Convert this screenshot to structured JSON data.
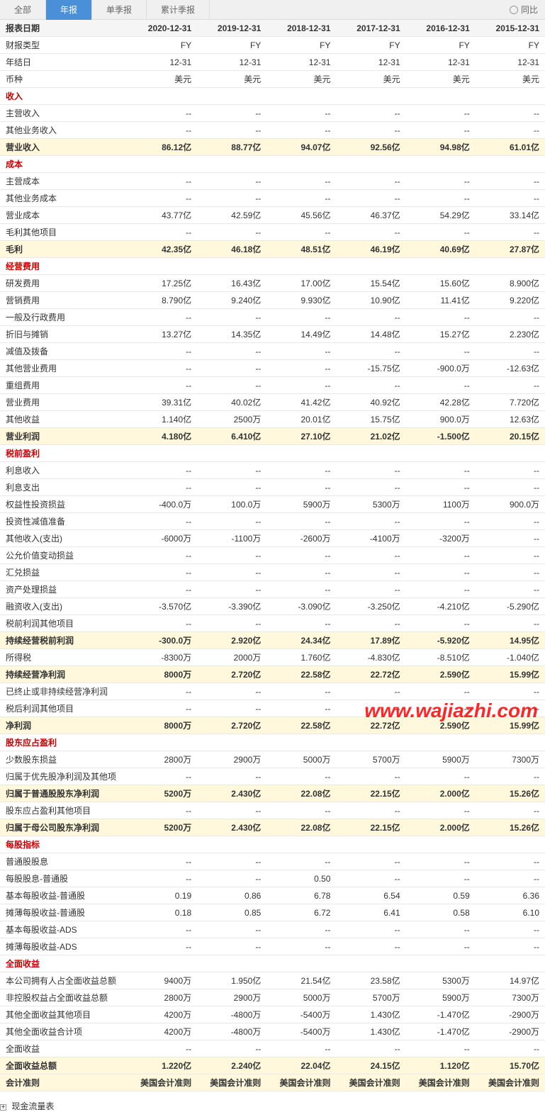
{
  "tabs": {
    "items": [
      "全部",
      "年报",
      "单季报",
      "累计季报"
    ],
    "active_index": 1,
    "yoy_label": "同比"
  },
  "table": {
    "header": [
      "报表日期",
      "2020-12-31",
      "2019-12-31",
      "2018-12-31",
      "2017-12-31",
      "2016-12-31",
      "2015-12-31"
    ],
    "rows": [
      {
        "type": "normal",
        "cells": [
          "财报类型",
          "FY",
          "FY",
          "FY",
          "FY",
          "FY",
          "FY"
        ]
      },
      {
        "type": "normal",
        "cells": [
          "年结日",
          "12-31",
          "12-31",
          "12-31",
          "12-31",
          "12-31",
          "12-31"
        ]
      },
      {
        "type": "normal",
        "cells": [
          "币种",
          "美元",
          "美元",
          "美元",
          "美元",
          "美元",
          "美元"
        ]
      },
      {
        "type": "section",
        "cells": [
          "收入",
          "",
          "",
          "",
          "",
          "",
          ""
        ]
      },
      {
        "type": "normal",
        "cells": [
          "主营收入",
          "--",
          "--",
          "--",
          "--",
          "--",
          "--"
        ]
      },
      {
        "type": "normal",
        "cells": [
          "其他业务收入",
          "--",
          "--",
          "--",
          "--",
          "--",
          "--"
        ]
      },
      {
        "type": "highlight",
        "cells": [
          "营业收入",
          "86.12亿",
          "88.77亿",
          "94.07亿",
          "92.56亿",
          "94.98亿",
          "61.01亿"
        ]
      },
      {
        "type": "section",
        "cells": [
          "成本",
          "",
          "",
          "",
          "",
          "",
          ""
        ]
      },
      {
        "type": "normal",
        "cells": [
          "主营成本",
          "--",
          "--",
          "--",
          "--",
          "--",
          "--"
        ]
      },
      {
        "type": "normal",
        "cells": [
          "其他业务成本",
          "--",
          "--",
          "--",
          "--",
          "--",
          "--"
        ]
      },
      {
        "type": "normal",
        "cells": [
          "营业成本",
          "43.77亿",
          "42.59亿",
          "45.56亿",
          "46.37亿",
          "54.29亿",
          "33.14亿"
        ]
      },
      {
        "type": "normal",
        "cells": [
          "毛利其他项目",
          "--",
          "--",
          "--",
          "--",
          "--",
          "--"
        ]
      },
      {
        "type": "highlight",
        "cells": [
          "毛利",
          "42.35亿",
          "46.18亿",
          "48.51亿",
          "46.19亿",
          "40.69亿",
          "27.87亿"
        ]
      },
      {
        "type": "section",
        "cells": [
          "经营费用",
          "",
          "",
          "",
          "",
          "",
          ""
        ]
      },
      {
        "type": "normal",
        "cells": [
          "研发费用",
          "17.25亿",
          "16.43亿",
          "17.00亿",
          "15.54亿",
          "15.60亿",
          "8.900亿"
        ]
      },
      {
        "type": "normal",
        "cells": [
          "营销费用",
          "8.790亿",
          "9.240亿",
          "9.930亿",
          "10.90亿",
          "11.41亿",
          "9.220亿"
        ]
      },
      {
        "type": "normal",
        "cells": [
          "一般及行政费用",
          "--",
          "--",
          "--",
          "--",
          "--",
          "--"
        ]
      },
      {
        "type": "normal",
        "cells": [
          "折旧与摊销",
          "13.27亿",
          "14.35亿",
          "14.49亿",
          "14.48亿",
          "15.27亿",
          "2.230亿"
        ]
      },
      {
        "type": "normal",
        "cells": [
          "减值及拨备",
          "--",
          "--",
          "--",
          "--",
          "--",
          "--"
        ]
      },
      {
        "type": "normal",
        "cells": [
          "其他营业费用",
          "--",
          "--",
          "--",
          "-15.75亿",
          "-900.0万",
          "-12.63亿"
        ]
      },
      {
        "type": "normal",
        "cells": [
          "重组费用",
          "--",
          "--",
          "--",
          "--",
          "--",
          "--"
        ]
      },
      {
        "type": "normal",
        "cells": [
          "营业费用",
          "39.31亿",
          "40.02亿",
          "41.42亿",
          "40.92亿",
          "42.28亿",
          "7.720亿"
        ]
      },
      {
        "type": "normal",
        "cells": [
          "其他收益",
          "1.140亿",
          "2500万",
          "20.01亿",
          "15.75亿",
          "900.0万",
          "12.63亿"
        ]
      },
      {
        "type": "highlight",
        "cells": [
          "营业利润",
          "4.180亿",
          "6.410亿",
          "27.10亿",
          "21.02亿",
          "-1.500亿",
          "20.15亿"
        ]
      },
      {
        "type": "section",
        "cells": [
          "税前盈利",
          "",
          "",
          "",
          "",
          "",
          ""
        ]
      },
      {
        "type": "normal",
        "cells": [
          "利息收入",
          "--",
          "--",
          "--",
          "--",
          "--",
          "--"
        ]
      },
      {
        "type": "normal",
        "cells": [
          "利息支出",
          "--",
          "--",
          "--",
          "--",
          "--",
          "--"
        ]
      },
      {
        "type": "normal",
        "cells": [
          "权益性投资损益",
          "-400.0万",
          "100.0万",
          "5900万",
          "5300万",
          "1100万",
          "900.0万"
        ]
      },
      {
        "type": "normal",
        "cells": [
          "投资性减值准备",
          "--",
          "--",
          "--",
          "--",
          "--",
          "--"
        ]
      },
      {
        "type": "normal",
        "cells": [
          "其他收入(支出)",
          "-6000万",
          "-1100万",
          "-2600万",
          "-4100万",
          "-3200万",
          "--"
        ]
      },
      {
        "type": "normal",
        "cells": [
          "公允价值变动损益",
          "--",
          "--",
          "--",
          "--",
          "--",
          "--"
        ]
      },
      {
        "type": "normal",
        "cells": [
          "汇兑损益",
          "--",
          "--",
          "--",
          "--",
          "--",
          "--"
        ]
      },
      {
        "type": "normal",
        "cells": [
          "资产处理损益",
          "--",
          "--",
          "--",
          "--",
          "--",
          "--"
        ]
      },
      {
        "type": "normal",
        "cells": [
          "融资收入(支出)",
          "-3.570亿",
          "-3.390亿",
          "-3.090亿",
          "-3.250亿",
          "-4.210亿",
          "-5.290亿"
        ]
      },
      {
        "type": "normal",
        "cells": [
          "税前利润其他项目",
          "--",
          "--",
          "--",
          "--",
          "--",
          "--"
        ]
      },
      {
        "type": "highlight",
        "cells": [
          "持续经营税前利润",
          "-300.0万",
          "2.920亿",
          "24.34亿",
          "17.89亿",
          "-5.920亿",
          "14.95亿"
        ]
      },
      {
        "type": "normal",
        "cells": [
          "所得税",
          "-8300万",
          "2000万",
          "1.760亿",
          "-4.830亿",
          "-8.510亿",
          "-1.040亿"
        ]
      },
      {
        "type": "highlight",
        "cells": [
          "持续经营净利润",
          "8000万",
          "2.720亿",
          "22.58亿",
          "22.72亿",
          "2.590亿",
          "15.99亿"
        ]
      },
      {
        "type": "normal",
        "cells": [
          "已终止或非持续经营净利润",
          "--",
          "--",
          "--",
          "--",
          "--",
          "--"
        ]
      },
      {
        "type": "normal",
        "cells": [
          "税后利润其他项目",
          "--",
          "--",
          "--",
          "--",
          "--",
          "--"
        ]
      },
      {
        "type": "highlight",
        "cells": [
          "净利润",
          "8000万",
          "2.720亿",
          "22.58亿",
          "22.72亿",
          "2.590亿",
          "15.99亿"
        ]
      },
      {
        "type": "section",
        "cells": [
          "股东应占盈利",
          "",
          "",
          "",
          "",
          "",
          ""
        ]
      },
      {
        "type": "normal",
        "cells": [
          "少数股东损益",
          "2800万",
          "2900万",
          "5000万",
          "5700万",
          "5900万",
          "7300万"
        ]
      },
      {
        "type": "normal",
        "cells": [
          "归属于优先股净利润及其他项",
          "--",
          "--",
          "--",
          "--",
          "--",
          "--"
        ]
      },
      {
        "type": "highlight",
        "cells": [
          "归属于普通股股东净利润",
          "5200万",
          "2.430亿",
          "22.08亿",
          "22.15亿",
          "2.000亿",
          "15.26亿"
        ]
      },
      {
        "type": "normal",
        "cells": [
          "股东应占盈利其他项目",
          "--",
          "--",
          "--",
          "--",
          "--",
          "--"
        ]
      },
      {
        "type": "highlight",
        "cells": [
          "归属于母公司股东净利润",
          "5200万",
          "2.430亿",
          "22.08亿",
          "22.15亿",
          "2.000亿",
          "15.26亿"
        ]
      },
      {
        "type": "section",
        "cells": [
          "每股指标",
          "",
          "",
          "",
          "",
          "",
          ""
        ]
      },
      {
        "type": "normal",
        "cells": [
          "普通股股息",
          "--",
          "--",
          "--",
          "--",
          "--",
          "--"
        ]
      },
      {
        "type": "normal",
        "cells": [
          "每股股息-普通股",
          "--",
          "--",
          "0.50",
          "--",
          "--",
          "--"
        ]
      },
      {
        "type": "normal",
        "cells": [
          "基本每股收益-普通股",
          "0.19",
          "0.86",
          "6.78",
          "6.54",
          "0.59",
          "6.36"
        ]
      },
      {
        "type": "normal",
        "cells": [
          "摊薄每股收益-普通股",
          "0.18",
          "0.85",
          "6.72",
          "6.41",
          "0.58",
          "6.10"
        ]
      },
      {
        "type": "normal",
        "cells": [
          "基本每股收益-ADS",
          "--",
          "--",
          "--",
          "--",
          "--",
          "--"
        ]
      },
      {
        "type": "normal",
        "cells": [
          "摊薄每股收益-ADS",
          "--",
          "--",
          "--",
          "--",
          "--",
          "--"
        ]
      },
      {
        "type": "section",
        "cells": [
          "全面收益",
          "",
          "",
          "",
          "",
          "",
          ""
        ]
      },
      {
        "type": "normal",
        "cells": [
          "本公司拥有人占全面收益总额",
          "9400万",
          "1.950亿",
          "21.54亿",
          "23.58亿",
          "5300万",
          "14.97亿"
        ]
      },
      {
        "type": "normal",
        "cells": [
          "非控股权益占全面收益总额",
          "2800万",
          "2900万",
          "5000万",
          "5700万",
          "5900万",
          "7300万"
        ]
      },
      {
        "type": "normal",
        "cells": [
          "其他全面收益其他项目",
          "4200万",
          "-4800万",
          "-5400万",
          "1.430亿",
          "-1.470亿",
          "-2900万"
        ]
      },
      {
        "type": "normal",
        "cells": [
          "其他全面收益合计项",
          "4200万",
          "-4800万",
          "-5400万",
          "1.430亿",
          "-1.470亿",
          "-2900万"
        ]
      },
      {
        "type": "normal",
        "cells": [
          "全面收益",
          "--",
          "--",
          "--",
          "--",
          "--",
          "--"
        ]
      },
      {
        "type": "highlight",
        "cells": [
          "全面收益总额",
          "1.220亿",
          "2.240亿",
          "22.04亿",
          "24.15亿",
          "1.120亿",
          "15.70亿"
        ]
      },
      {
        "type": "highlight",
        "cells": [
          "会计准则",
          "美国会计准则",
          "美国会计准则",
          "美国会计准则",
          "美国会计准则",
          "美国会计准则",
          "美国会计准则"
        ]
      }
    ]
  },
  "bottom_section": {
    "title": "现金流量表"
  },
  "watermark": "www.wajiazhi.com",
  "colors": {
    "tab_active_bg": "#4a90d9",
    "section_text": "#cc0000",
    "highlight_bg": "#fff8dc",
    "border": "#e8e8e8",
    "watermark": "#ff0000"
  }
}
